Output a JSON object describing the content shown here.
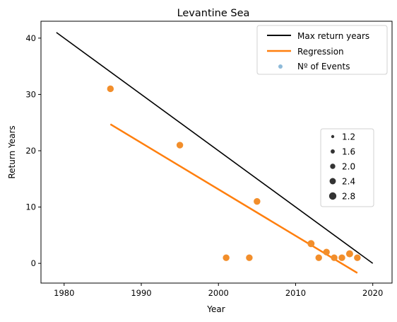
{
  "chart_data": {
    "type": "scatter",
    "title": "Levantine Sea",
    "xlabel": "Year",
    "ylabel": "Return Years",
    "xlim": [
      1977,
      2022.5
    ],
    "ylim": [
      -3.5,
      43
    ],
    "xticks": [
      1980,
      1990,
      2000,
      2010,
      2020
    ],
    "yticks": [
      0,
      10,
      20,
      30,
      40
    ],
    "grid": false,
    "max_line": {
      "name": "Max return years",
      "color": "#000000",
      "x": [
        1979,
        2020
      ],
      "y": [
        41,
        0
      ]
    },
    "regression": {
      "name": "Regression",
      "color": "#ff7f0e",
      "x": [
        1986,
        2018
      ],
      "y": [
        24.7,
        -1.7
      ]
    },
    "events": {
      "name": "Nº of Events",
      "color": "#f28e2b",
      "legend_color": "#8ebad9",
      "points": [
        {
          "x": 1986,
          "y": 31,
          "n": 1
        },
        {
          "x": 1995,
          "y": 21,
          "n": 1
        },
        {
          "x": 2001,
          "y": 1,
          "n": 1
        },
        {
          "x": 2004,
          "y": 1,
          "n": 1
        },
        {
          "x": 2005,
          "y": 11,
          "n": 1
        },
        {
          "x": 2012,
          "y": 3.5,
          "n": 2
        },
        {
          "x": 2013,
          "y": 1,
          "n": 1
        },
        {
          "x": 2014,
          "y": 2,
          "n": 1
        },
        {
          "x": 2015,
          "y": 1,
          "n": 1
        },
        {
          "x": 2016,
          "y": 1,
          "n": 1
        },
        {
          "x": 2017,
          "y": 1.7,
          "n": 2
        },
        {
          "x": 2018,
          "y": 1,
          "n": 1
        }
      ]
    },
    "size_legend": {
      "position": "center-right",
      "entries": [
        "1.2",
        "1.6",
        "2.0",
        "2.4",
        "2.8"
      ]
    },
    "legend": {
      "position": "upper-right"
    }
  }
}
